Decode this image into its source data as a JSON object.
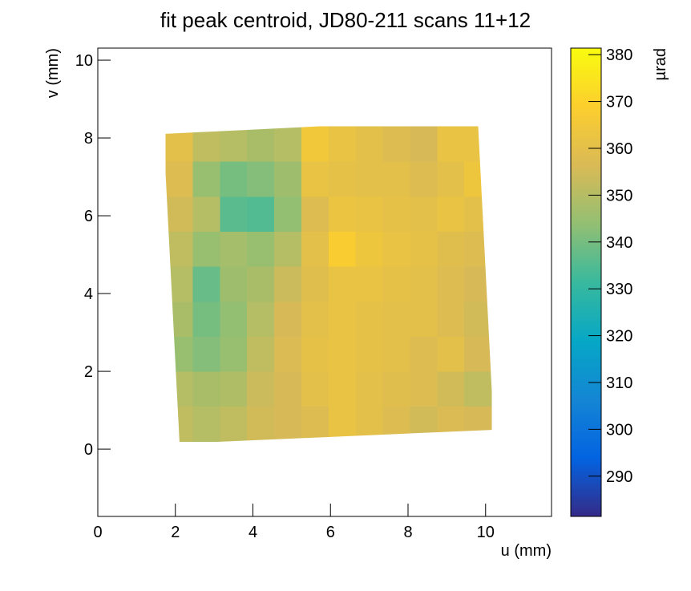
{
  "chart_data": {
    "type": "heatmap",
    "title": "fit peak centroid, JD80-211 scans 11+12",
    "x_label": "u (mm)",
    "y_label": "v (mm)",
    "colorbar_label": "µrad",
    "xlim": [
      0,
      11.7
    ],
    "xticks": [
      0,
      2,
      4,
      6,
      8,
      10
    ],
    "ylim": [
      -1.73,
      10.31
    ],
    "yticks": [
      0,
      2,
      4,
      6,
      8,
      10
    ],
    "zlim": [
      281.4,
      381.4
    ],
    "zticks": [
      290,
      300,
      310,
      320,
      330,
      340,
      350,
      360,
      370,
      380
    ],
    "colorscale": [
      "#352a87",
      "#0363e1",
      "#1485d4",
      "#06a7c6",
      "#38b99e",
      "#92bf73",
      "#d9ba56",
      "#fcce2e",
      "#f9fb0e"
    ],
    "x_edges": [
      1.75,
      2.45,
      3.15,
      3.85,
      4.55,
      5.25,
      5.95,
      6.65,
      7.35,
      8.05,
      8.75,
      9.45,
      10.15
    ],
    "y_edges": [
      0.2,
      1.1,
      2.0,
      2.9,
      3.8,
      4.7,
      5.6,
      6.5,
      7.4,
      8.3
    ],
    "z": [
      [
        352,
        350,
        352,
        355,
        356,
        358,
        362,
        360,
        358,
        355,
        357,
        356
      ],
      [
        350,
        348,
        349,
        354,
        356,
        360,
        362,
        360,
        359,
        358,
        355,
        352
      ],
      [
        345,
        342,
        345,
        352,
        357,
        361,
        362,
        361,
        360,
        358,
        360,
        356
      ],
      [
        348,
        340,
        344,
        350,
        356,
        360,
        362,
        361,
        360,
        360,
        358,
        355
      ],
      [
        350,
        338,
        346,
        348,
        354,
        359,
        362,
        362,
        361,
        360,
        358,
        356
      ],
      [
        352,
        345,
        347,
        345,
        350,
        360,
        368,
        364,
        362,
        361,
        359,
        358
      ],
      [
        355,
        350,
        336,
        335,
        344,
        358,
        363,
        362,
        361,
        360,
        362,
        360
      ],
      [
        358,
        345,
        340,
        342,
        346,
        362,
        361,
        360,
        360,
        358,
        360,
        364
      ],
      [
        360,
        352,
        350,
        348,
        350,
        365,
        362,
        360,
        358,
        356,
        362,
        362
      ]
    ]
  }
}
